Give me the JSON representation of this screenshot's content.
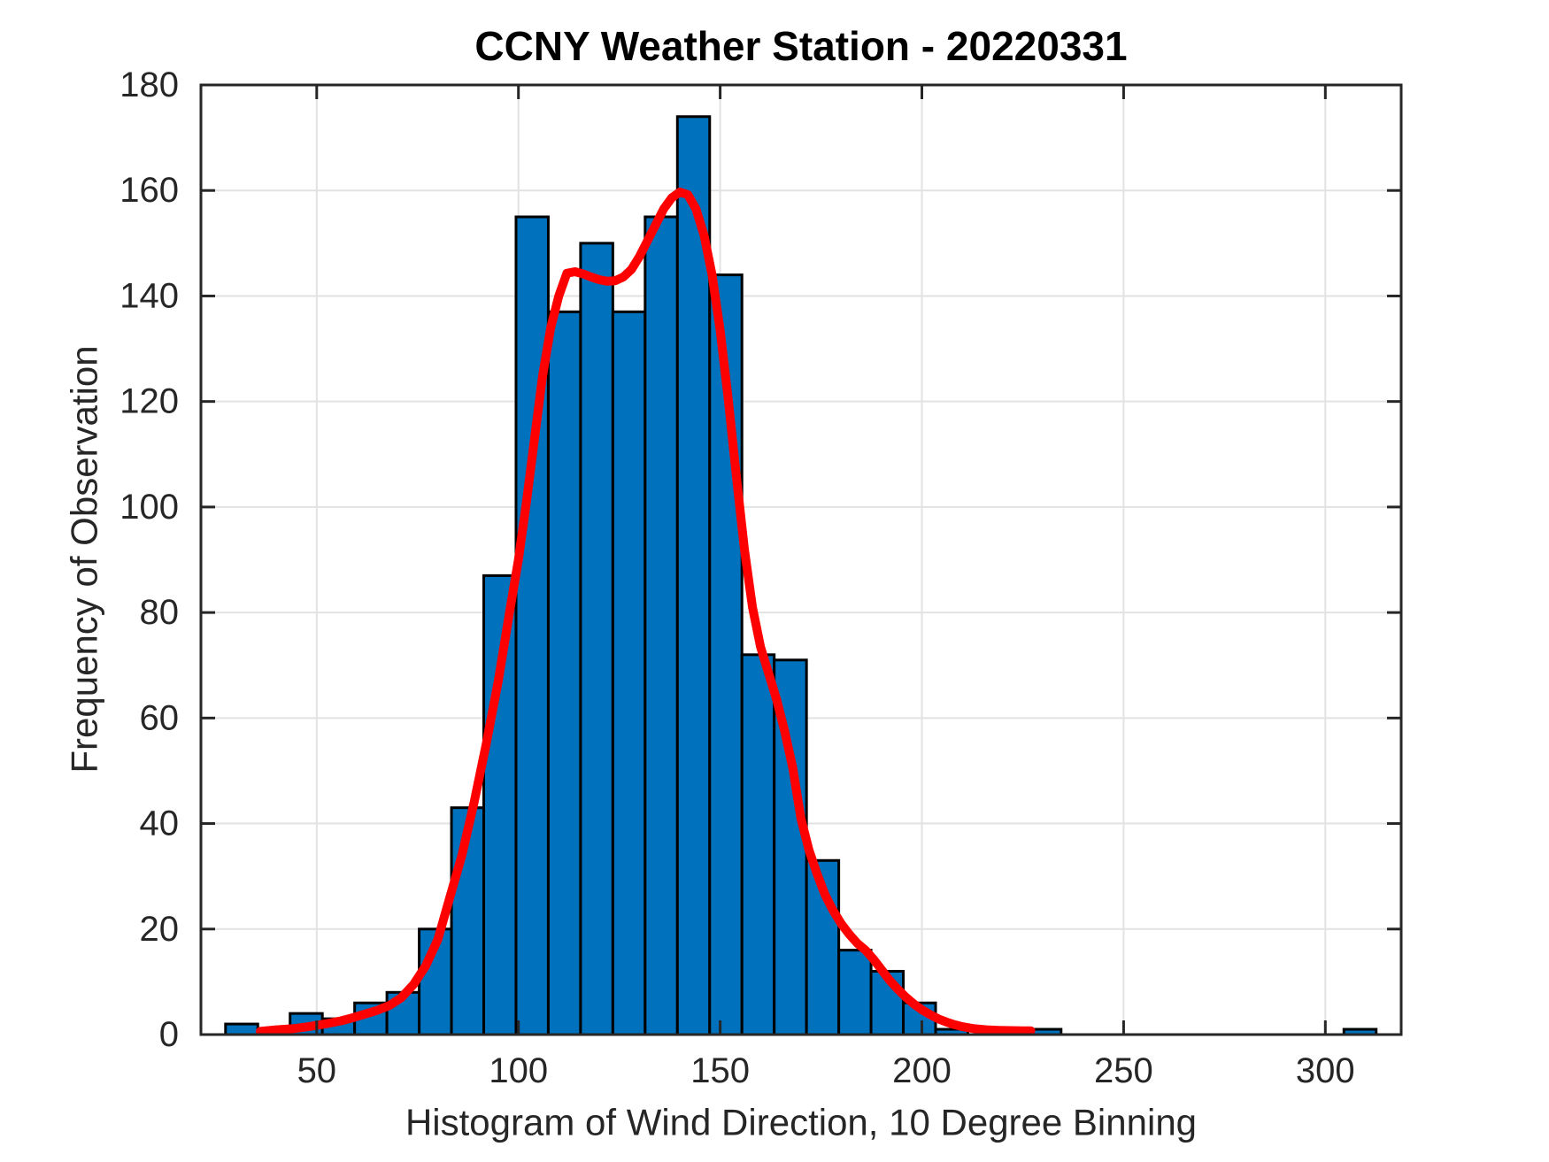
{
  "chart_data": {
    "type": "bar",
    "subtype": "histogram_with_density_curve",
    "title": "CCNY Weather Station - 20220331",
    "xlabel": "Histogram of Wind Direction, 10 Degree Binning",
    "ylabel": "Frequency of Observation",
    "xlim": [
      21.3,
      318.8
    ],
    "ylim": [
      0,
      180
    ],
    "x_ticks": [
      50,
      100,
      150,
      200,
      250,
      300
    ],
    "y_ticks": [
      0,
      20,
      40,
      60,
      80,
      100,
      120,
      140,
      160,
      180
    ],
    "grid": true,
    "legend": "none",
    "bar_color": "#0072BD",
    "bar_edge_color": "#000000",
    "curve_color": "#FF0000",
    "axis_color": "#262626",
    "grid_color": "#E2E2E2",
    "bins": [
      [
        27.4,
        35.4,
        2
      ],
      [
        35.4,
        43.4,
        1
      ],
      [
        43.4,
        51.4,
        4
      ],
      [
        51.4,
        59.4,
        3
      ],
      [
        59.4,
        67.4,
        6
      ],
      [
        67.4,
        75.4,
        8
      ],
      [
        75.4,
        83.4,
        20
      ],
      [
        83.4,
        91.4,
        43
      ],
      [
        91.4,
        99.4,
        87
      ],
      [
        99.4,
        107.4,
        155
      ],
      [
        107.4,
        115.4,
        137
      ],
      [
        115.4,
        123.4,
        150
      ],
      [
        123.4,
        131.4,
        137
      ],
      [
        131.4,
        139.4,
        155
      ],
      [
        139.4,
        147.4,
        174
      ],
      [
        147.4,
        155.4,
        144
      ],
      [
        155.4,
        163.4,
        72
      ],
      [
        163.4,
        171.4,
        71
      ],
      [
        171.4,
        179.4,
        33
      ],
      [
        179.4,
        187.4,
        16
      ],
      [
        187.4,
        195.4,
        12
      ],
      [
        195.4,
        203.4,
        6
      ],
      [
        203.4,
        211.4,
        1
      ],
      [
        226.5,
        234.5,
        1
      ],
      [
        304.6,
        312.6,
        1
      ]
    ],
    "curve_points": [
      [
        36,
        0.6
      ],
      [
        40,
        0.9
      ],
      [
        44,
        1.1
      ],
      [
        48,
        1.5
      ],
      [
        52,
        2.0
      ],
      [
        56,
        2.6
      ],
      [
        59,
        3.2
      ],
      [
        62,
        3.9
      ],
      [
        65,
        4.6
      ],
      [
        68,
        5.5
      ],
      [
        71,
        7.0
      ],
      [
        74,
        9.5
      ],
      [
        77,
        13
      ],
      [
        80,
        18
      ],
      [
        83,
        26
      ],
      [
        86,
        34
      ],
      [
        89,
        44
      ],
      [
        92,
        55
      ],
      [
        95,
        67
      ],
      [
        98,
        81
      ],
      [
        100,
        90
      ],
      [
        102,
        101
      ],
      [
        104,
        113
      ],
      [
        106,
        125
      ],
      [
        108,
        134
      ],
      [
        110,
        140
      ],
      [
        112,
        144.3
      ],
      [
        114,
        144.6
      ],
      [
        116,
        144.2
      ],
      [
        118,
        143.6
      ],
      [
        120,
        143.1
      ],
      [
        122,
        142.8
      ],
      [
        124,
        142.9
      ],
      [
        126,
        143.6
      ],
      [
        128,
        145
      ],
      [
        130,
        147.5
      ],
      [
        132,
        150.5
      ],
      [
        134,
        153.5
      ],
      [
        136,
        156.5
      ],
      [
        138,
        158.6
      ],
      [
        140,
        159.7
      ],
      [
        142,
        159.2
      ],
      [
        144,
        156.5
      ],
      [
        146,
        151.5
      ],
      [
        148,
        144
      ],
      [
        150,
        133.5
      ],
      [
        152,
        120.5
      ],
      [
        154,
        106
      ],
      [
        156,
        92
      ],
      [
        158,
        81
      ],
      [
        160,
        73.5
      ],
      [
        162,
        68.5
      ],
      [
        164,
        63.5
      ],
      [
        166,
        57.5
      ],
      [
        168,
        50.5
      ],
      [
        170,
        41
      ],
      [
        172,
        35
      ],
      [
        174,
        30.5
      ],
      [
        176,
        26.5
      ],
      [
        178,
        23.5
      ],
      [
        180,
        21
      ],
      [
        182,
        19
      ],
      [
        184,
        17.3
      ],
      [
        186,
        16
      ],
      [
        188,
        14.3
      ],
      [
        190,
        12.3
      ],
      [
        192,
        10.3
      ],
      [
        194,
        8.6
      ],
      [
        196,
        7.1
      ],
      [
        198,
        5.8
      ],
      [
        200,
        4.7
      ],
      [
        202,
        3.8
      ],
      [
        204,
        3.0
      ],
      [
        206,
        2.4
      ],
      [
        208,
        1.9
      ],
      [
        210,
        1.5
      ],
      [
        213,
        1.1
      ],
      [
        216,
        0.9
      ],
      [
        219,
        0.8
      ],
      [
        222,
        0.75
      ],
      [
        225,
        0.7
      ],
      [
        227,
        0.7
      ]
    ]
  }
}
